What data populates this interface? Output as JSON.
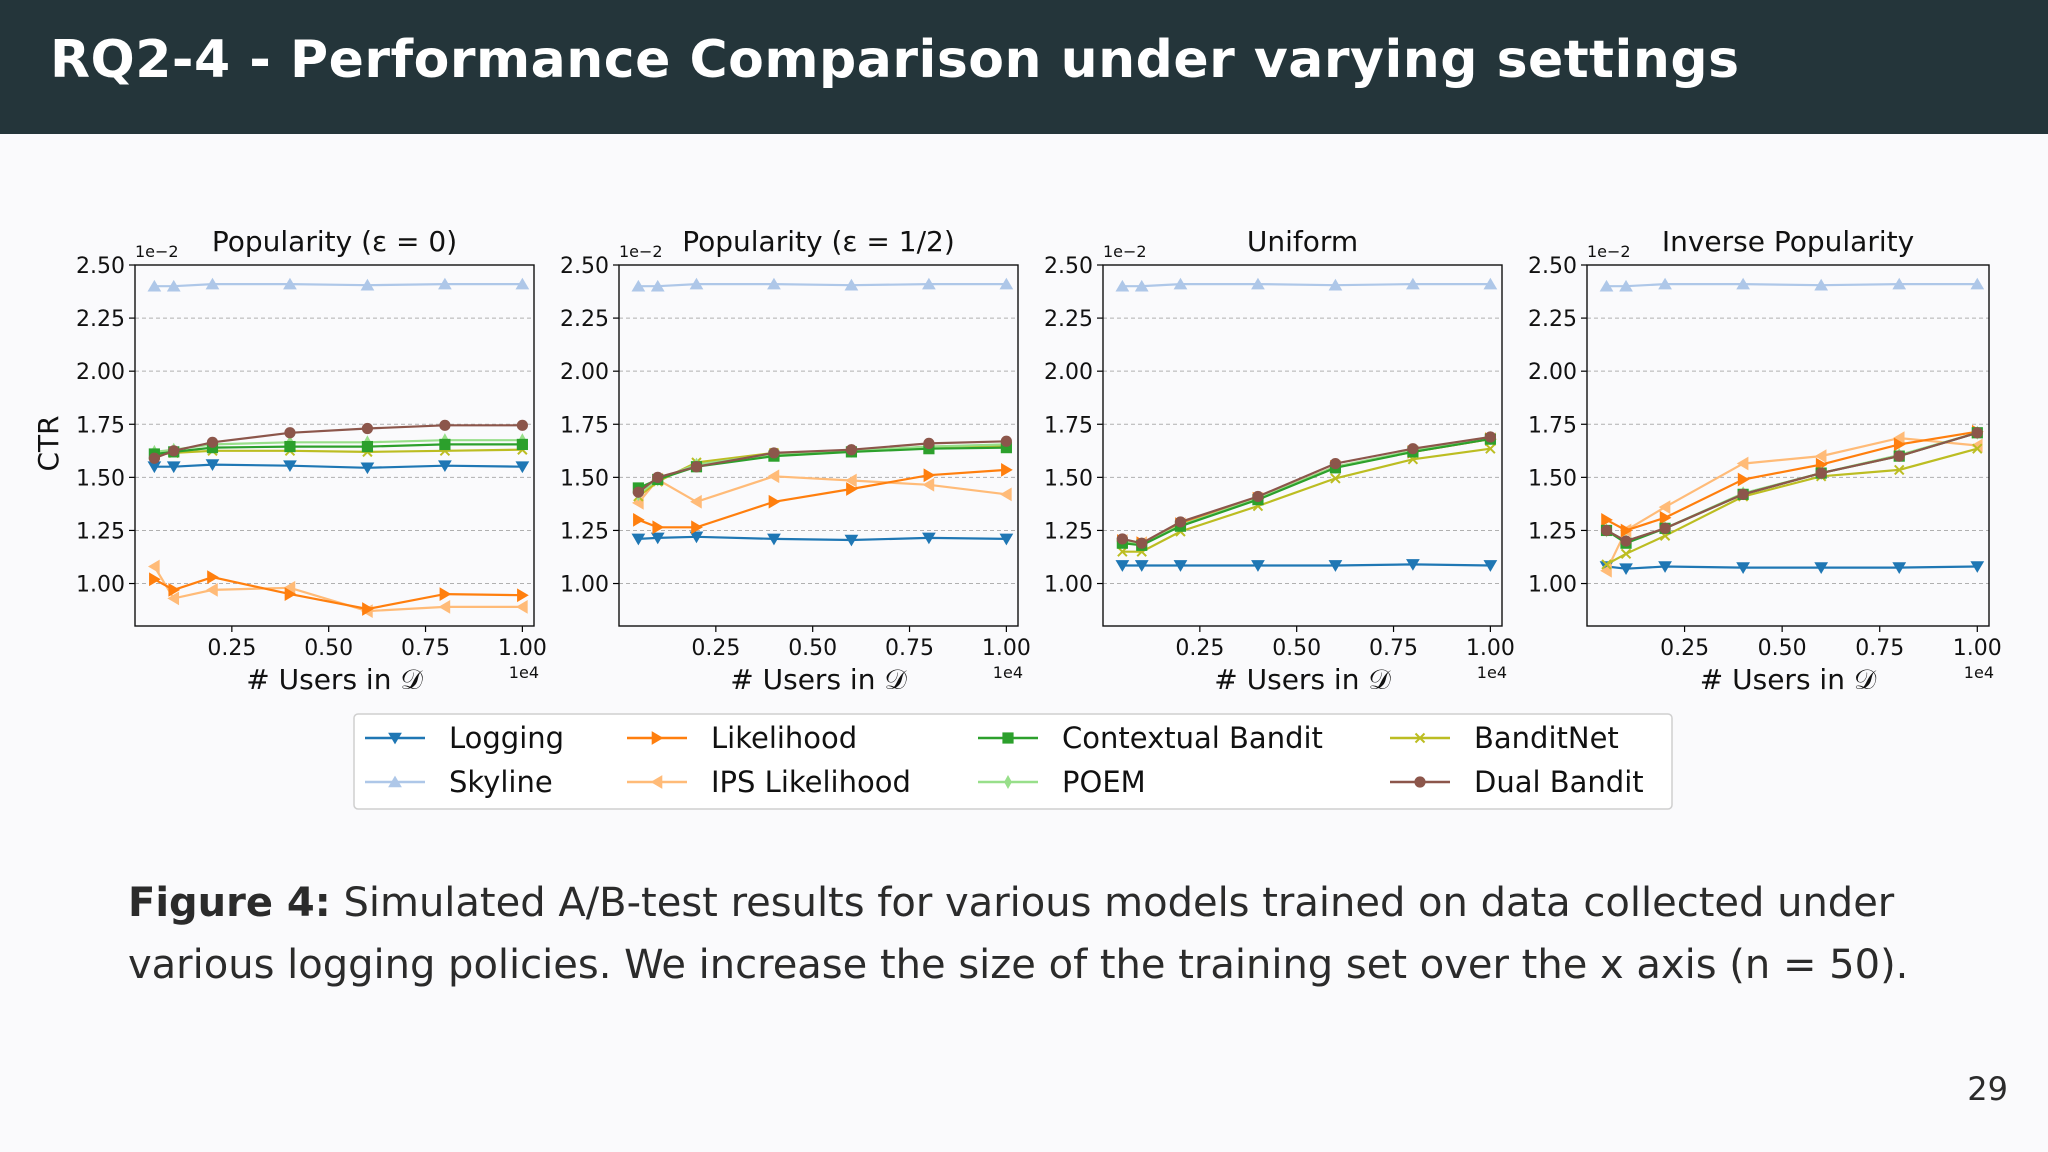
{
  "header": {
    "title": "RQ2-4 - Performance Comparison under varying settings"
  },
  "caption": {
    "label": "Figure 4:",
    "text": "Simulated A/B-test results for various models trained on data collected under various logging policies. We increase the size of the training set over the x axis (n = 50)."
  },
  "page_number": "29",
  "chart_data": [
    {
      "type": "line",
      "title": "Popularity (ε = 0)",
      "xlabel": "# Users in 𝒟",
      "ylabel": "CTR",
      "x_multiplier": "1e4",
      "y_multiplier": "1e−2",
      "xlim": [
        0,
        1.03
      ],
      "ylim": [
        0.8,
        2.5
      ],
      "xticks": [
        "0.25",
        "0.50",
        "0.75",
        "1.00"
      ],
      "yticks": [
        "1.00",
        "1.25",
        "1.50",
        "1.75",
        "2.00",
        "2.25",
        "2.50"
      ],
      "grid": "y",
      "x": [
        0.05,
        0.1,
        0.2,
        0.4,
        0.6,
        0.8,
        1.0
      ],
      "series": [
        {
          "name": "Logging",
          "values": [
            1.55,
            1.55,
            1.56,
            1.555,
            1.545,
            1.555,
            1.55
          ]
        },
        {
          "name": "Skyline",
          "values": [
            2.4,
            2.4,
            2.41,
            2.41,
            2.405,
            2.41,
            2.41
          ]
        },
        {
          "name": "Likelihood",
          "values": [
            1.02,
            0.97,
            1.03,
            0.95,
            0.88,
            0.95,
            0.945
          ]
        },
        {
          "name": "IPS Likelihood",
          "values": [
            1.08,
            0.93,
            0.97,
            0.98,
            0.87,
            0.89,
            0.89
          ]
        },
        {
          "name": "Contextual Bandit",
          "values": [
            1.61,
            1.62,
            1.64,
            1.645,
            1.645,
            1.655,
            1.655
          ]
        },
        {
          "name": "POEM",
          "values": [
            1.62,
            1.63,
            1.655,
            1.665,
            1.665,
            1.675,
            1.675
          ]
        },
        {
          "name": "BanditNet",
          "values": [
            1.605,
            1.615,
            1.625,
            1.625,
            1.62,
            1.625,
            1.63
          ]
        },
        {
          "name": "Dual Bandit",
          "values": [
            1.59,
            1.625,
            1.665,
            1.71,
            1.73,
            1.745,
            1.745
          ]
        }
      ]
    },
    {
      "type": "line",
      "title": "Popularity (ε = 1/2)",
      "xlabel": "# Users in 𝒟",
      "ylabel": "",
      "x_multiplier": "1e4",
      "y_multiplier": "1e−2",
      "xlim": [
        0,
        1.03
      ],
      "ylim": [
        0.8,
        2.5
      ],
      "xticks": [
        "0.25",
        "0.50",
        "0.75",
        "1.00"
      ],
      "yticks": [
        "1.00",
        "1.25",
        "1.50",
        "1.75",
        "2.00",
        "2.25",
        "2.50"
      ],
      "grid": "y",
      "x": [
        0.05,
        0.1,
        0.2,
        0.4,
        0.6,
        0.8,
        1.0
      ],
      "series": [
        {
          "name": "Logging",
          "values": [
            1.21,
            1.215,
            1.22,
            1.21,
            1.205,
            1.215,
            1.21
          ]
        },
        {
          "name": "Skyline",
          "values": [
            2.4,
            2.4,
            2.41,
            2.41,
            2.405,
            2.41,
            2.41
          ]
        },
        {
          "name": "Likelihood",
          "values": [
            1.3,
            1.265,
            1.265,
            1.385,
            1.445,
            1.51,
            1.535
          ]
        },
        {
          "name": "IPS Likelihood",
          "values": [
            1.38,
            1.49,
            1.385,
            1.505,
            1.485,
            1.465,
            1.42
          ]
        },
        {
          "name": "Contextual Bandit",
          "values": [
            1.45,
            1.49,
            1.55,
            1.6,
            1.62,
            1.635,
            1.64
          ]
        },
        {
          "name": "POEM",
          "values": [
            1.42,
            1.49,
            1.56,
            1.61,
            1.625,
            1.645,
            1.655
          ]
        },
        {
          "name": "BanditNet",
          "values": [
            1.41,
            1.48,
            1.57,
            1.615,
            1.62,
            1.645,
            1.65
          ]
        },
        {
          "name": "Dual Bandit",
          "values": [
            1.43,
            1.5,
            1.55,
            1.615,
            1.63,
            1.66,
            1.67
          ]
        }
      ]
    },
    {
      "type": "line",
      "title": "Uniform",
      "xlabel": "# Users in 𝒟",
      "ylabel": "",
      "x_multiplier": "1e4",
      "y_multiplier": "1e−2",
      "xlim": [
        0,
        1.03
      ],
      "ylim": [
        0.8,
        2.5
      ],
      "xticks": [
        "0.25",
        "0.50",
        "0.75",
        "1.00"
      ],
      "yticks": [
        "1.00",
        "1.25",
        "1.50",
        "1.75",
        "2.00",
        "2.25",
        "2.50"
      ],
      "grid": "y",
      "x": [
        0.05,
        0.1,
        0.2,
        0.4,
        0.6,
        0.8,
        1.0
      ],
      "series": [
        {
          "name": "Logging",
          "values": [
            1.085,
            1.085,
            1.085,
            1.085,
            1.085,
            1.09,
            1.085
          ]
        },
        {
          "name": "Skyline",
          "values": [
            2.4,
            2.4,
            2.41,
            2.41,
            2.405,
            2.41,
            2.41
          ]
        },
        {
          "name": "Likelihood",
          "values": [
            1.2,
            1.19,
            1.28,
            1.4,
            1.55,
            1.62,
            1.68
          ]
        },
        {
          "name": "IPS Likelihood",
          "values": [
            1.2,
            1.19,
            1.28,
            1.4,
            1.55,
            1.62,
            1.68
          ]
        },
        {
          "name": "Contextual Bandit",
          "values": [
            1.19,
            1.18,
            1.27,
            1.395,
            1.545,
            1.62,
            1.68
          ]
        },
        {
          "name": "POEM",
          "values": [
            1.2,
            1.185,
            1.275,
            1.4,
            1.55,
            1.625,
            1.685
          ]
        },
        {
          "name": "BanditNet",
          "values": [
            1.15,
            1.15,
            1.245,
            1.365,
            1.495,
            1.585,
            1.635
          ]
        },
        {
          "name": "Dual Bandit",
          "values": [
            1.21,
            1.19,
            1.29,
            1.41,
            1.565,
            1.635,
            1.69
          ]
        }
      ]
    },
    {
      "type": "line",
      "title": "Inverse Popularity",
      "xlabel": "# Users in 𝒟",
      "ylabel": "",
      "x_multiplier": "1e4",
      "y_multiplier": "1e−2",
      "xlim": [
        0,
        1.03
      ],
      "ylim": [
        0.8,
        2.5
      ],
      "xticks": [
        "0.25",
        "0.50",
        "0.75",
        "1.00"
      ],
      "yticks": [
        "1.00",
        "1.25",
        "1.50",
        "1.75",
        "2.00",
        "2.25",
        "2.50"
      ],
      "grid": "y",
      "x": [
        0.05,
        0.1,
        0.2,
        0.4,
        0.6,
        0.8,
        1.0
      ],
      "series": [
        {
          "name": "Logging",
          "values": [
            1.08,
            1.07,
            1.08,
            1.075,
            1.075,
            1.075,
            1.08
          ]
        },
        {
          "name": "Skyline",
          "values": [
            2.4,
            2.4,
            2.41,
            2.41,
            2.405,
            2.41,
            2.41
          ]
        },
        {
          "name": "Likelihood",
          "values": [
            1.3,
            1.25,
            1.31,
            1.49,
            1.56,
            1.655,
            1.715
          ]
        },
        {
          "name": "IPS Likelihood",
          "values": [
            1.06,
            1.25,
            1.36,
            1.565,
            1.6,
            1.685,
            1.65
          ]
        },
        {
          "name": "Contextual Bandit",
          "values": [
            1.25,
            1.19,
            1.26,
            1.42,
            1.52,
            1.6,
            1.71
          ]
        },
        {
          "name": "POEM",
          "values": [
            1.25,
            1.2,
            1.26,
            1.425,
            1.52,
            1.605,
            1.71
          ]
        },
        {
          "name": "BanditNet",
          "values": [
            1.09,
            1.14,
            1.225,
            1.41,
            1.505,
            1.535,
            1.635
          ]
        },
        {
          "name": "Dual Bandit",
          "values": [
            1.25,
            1.2,
            1.26,
            1.42,
            1.52,
            1.6,
            1.71
          ]
        }
      ]
    }
  ],
  "legend": {
    "placement": "bottom-center",
    "entries": [
      {
        "name": "Logging",
        "color": "#1f77b4",
        "marker": "triangle-down"
      },
      {
        "name": "Likelihood",
        "color": "#ff7f0e",
        "marker": "triangle-right"
      },
      {
        "name": "Contextual Bandit",
        "color": "#2ca02c",
        "marker": "square"
      },
      {
        "name": "BanditNet",
        "color": "#bcbd22",
        "marker": "x"
      },
      {
        "name": "Skyline",
        "color": "#aec7e8",
        "marker": "triangle-up"
      },
      {
        "name": "IPS Likelihood",
        "color": "#ffbb78",
        "marker": "triangle-left"
      },
      {
        "name": "POEM",
        "color": "#98df8a",
        "marker": "diamond-thin"
      },
      {
        "name": "Dual Bandit",
        "color": "#8c564b",
        "marker": "circle"
      }
    ]
  }
}
